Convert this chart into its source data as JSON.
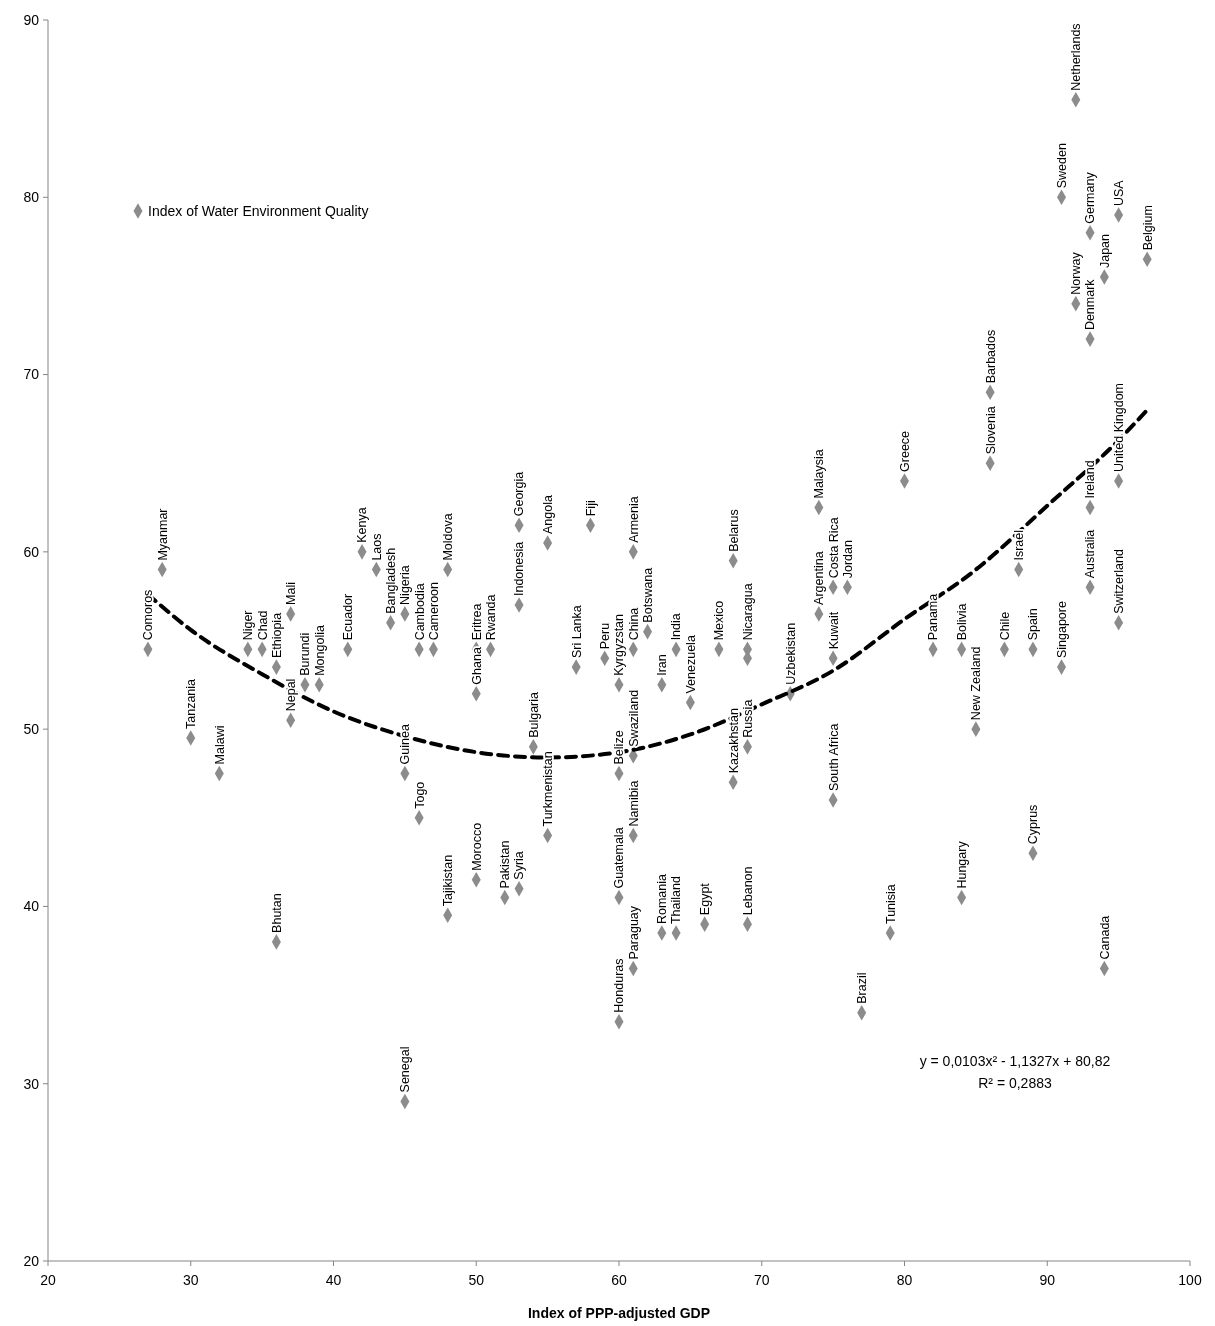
{
  "chart_data": {
    "type": "scatter",
    "xlabel": "Index of PPP-adjusted GDP",
    "xlim": [
      20,
      100
    ],
    "xticks": [
      20,
      30,
      40,
      50,
      60,
      70,
      80,
      90,
      100
    ],
    "ylim": [
      20,
      90
    ],
    "yticks": [
      20,
      30,
      40,
      50,
      60,
      70,
      80,
      90
    ],
    "legend": "top left",
    "series": [
      {
        "name": "Index of Water Environment Quality",
        "marker": "diamond",
        "color": "#8c8c8c",
        "x": [
          27,
          28,
          30,
          32,
          34,
          35,
          36,
          36,
          37,
          37,
          38,
          39,
          41,
          42,
          43,
          44,
          45,
          45,
          45,
          46,
          46,
          47,
          48,
          48,
          50,
          50,
          50,
          51,
          52,
          53,
          53,
          53,
          54,
          55,
          55,
          57,
          58,
          59,
          60,
          60,
          60,
          60,
          61,
          61,
          61,
          61,
          61,
          62,
          63,
          63,
          64,
          64,
          65,
          66,
          67,
          68,
          68,
          69,
          69,
          69,
          69,
          72,
          74,
          74,
          75,
          75,
          75,
          76,
          77,
          79,
          80,
          82,
          84,
          84,
          85,
          86,
          86,
          87,
          88,
          89,
          89,
          91,
          91,
          92,
          92,
          93,
          93,
          93,
          93,
          94,
          94,
          95,
          95,
          95,
          97
        ],
        "values": [
          54.5,
          59,
          49.5,
          47.5,
          54.5,
          54.5,
          53.5,
          38,
          56.5,
          50.5,
          52.5,
          52.5,
          54.5,
          60,
          59,
          56,
          56.5,
          47.5,
          29,
          54.5,
          45,
          54.5,
          59,
          39.5,
          52,
          54.5,
          41.5,
          54.5,
          40.5,
          57,
          61.5,
          41,
          49,
          60.5,
          44,
          53.5,
          61.5,
          54,
          52.5,
          47.5,
          40.5,
          33.5,
          54.5,
          60,
          48.5,
          44,
          36.5,
          55.5,
          52.5,
          38.5,
          54.5,
          38.5,
          51.5,
          39,
          54.5,
          59.5,
          47,
          54.5,
          54,
          49,
          39,
          52,
          62.5,
          56.5,
          54,
          46,
          58,
          58,
          34,
          38.5,
          64,
          54.5,
          54.5,
          40.5,
          50,
          65,
          69,
          54.5,
          59,
          54.5,
          43,
          80,
          53.5,
          85.5,
          74,
          78,
          72,
          62.5,
          58,
          75.5,
          36.5,
          79,
          56,
          64,
          76.5
        ]
      },
      {
        "type": "line",
        "marker": "none",
        "line_style": "dashed",
        "color": "#000000",
        "x": [
          27,
          30,
          35,
          40,
          45,
          50,
          55,
          60,
          65,
          70,
          75,
          80,
          85,
          90,
          95,
          97
        ],
        "values": [
          57.6,
          55.6,
          53.1,
          51,
          49.6,
          48.7,
          48.4,
          48.7,
          49.7,
          51.4,
          53.3,
          56.2,
          59,
          62.6,
          66.3,
          68
        ]
      }
    ],
    "annotations": [
      {
        "text": "Comoros",
        "x": 27,
        "y": 54.5
      },
      {
        "text": "Myanmar",
        "x": 28,
        "y": 59
      },
      {
        "text": "Tanzania",
        "x": 30,
        "y": 49.5
      },
      {
        "text": "Malawi",
        "x": 32,
        "y": 47.5
      },
      {
        "text": "Niger",
        "x": 34,
        "y": 54.5
      },
      {
        "text": "Chad",
        "x": 35,
        "y": 54.5
      },
      {
        "text": "Ethiopia",
        "x": 36,
        "y": 53.5
      },
      {
        "text": "Bhutan",
        "x": 36,
        "y": 38
      },
      {
        "text": "Mali",
        "x": 37,
        "y": 56.5
      },
      {
        "text": "Nepal",
        "x": 37,
        "y": 50.5
      },
      {
        "text": "Burundi",
        "x": 38,
        "y": 52.5
      },
      {
        "text": "Mongolia",
        "x": 39,
        "y": 52.5
      },
      {
        "text": "Ecuador",
        "x": 41,
        "y": 54.5
      },
      {
        "text": "Kenya",
        "x": 42,
        "y": 60
      },
      {
        "text": "Laos",
        "x": 43,
        "y": 59
      },
      {
        "text": "Bangladesh",
        "x": 44,
        "y": 56
      },
      {
        "text": "Nigeria",
        "x": 45,
        "y": 56.5
      },
      {
        "text": "Guinea",
        "x": 45,
        "y": 47.5
      },
      {
        "text": "Senegal",
        "x": 45,
        "y": 29
      },
      {
        "text": "Cambodia",
        "x": 46,
        "y": 54.5
      },
      {
        "text": "Togo",
        "x": 46,
        "y": 45
      },
      {
        "text": "Cameroon",
        "x": 47,
        "y": 54.5
      },
      {
        "text": "Moldova",
        "x": 48,
        "y": 59
      },
      {
        "text": "Tajikistan",
        "x": 48,
        "y": 39.5
      },
      {
        "text": "Ghana",
        "x": 50,
        "y": 52
      },
      {
        "text": "Eritrea",
        "x": 50,
        "y": 54.5
      },
      {
        "text": "Morocco",
        "x": 50,
        "y": 41.5
      },
      {
        "text": "Rwanda",
        "x": 51,
        "y": 54.5
      },
      {
        "text": "Pakistan",
        "x": 52,
        "y": 40.5
      },
      {
        "text": "Indonesia",
        "x": 53,
        "y": 57
      },
      {
        "text": "Georgia",
        "x": 53,
        "y": 61.5
      },
      {
        "text": "Syria",
        "x": 53,
        "y": 41
      },
      {
        "text": "Bulgaria",
        "x": 54,
        "y": 49
      },
      {
        "text": "Angola",
        "x": 55,
        "y": 60.5
      },
      {
        "text": "Turkmenistan",
        "x": 55,
        "y": 44
      },
      {
        "text": "Sri Lanka",
        "x": 57,
        "y": 53.5
      },
      {
        "text": "Fiji",
        "x": 58,
        "y": 61.5
      },
      {
        "text": "Peru",
        "x": 59,
        "y": 54
      },
      {
        "text": "Kyrgyzstan",
        "x": 60,
        "y": 52.5
      },
      {
        "text": "Belize",
        "x": 60,
        "y": 47.5
      },
      {
        "text": "Guatemala",
        "x": 60,
        "y": 40.5
      },
      {
        "text": "Honduras",
        "x": 60,
        "y": 33.5
      },
      {
        "text": "China",
        "x": 61,
        "y": 54.5
      },
      {
        "text": "Armenia",
        "x": 61,
        "y": 60
      },
      {
        "text": "Swaziland",
        "x": 61,
        "y": 48.5
      },
      {
        "text": "Namibia",
        "x": 61,
        "y": 44
      },
      {
        "text": "Paraguay",
        "x": 61,
        "y": 36.5
      },
      {
        "text": "Botswana",
        "x": 62,
        "y": 55.5
      },
      {
        "text": "Iran",
        "x": 63,
        "y": 52.5
      },
      {
        "text": "Romania",
        "x": 63,
        "y": 38.5
      },
      {
        "text": "India",
        "x": 64,
        "y": 54.5
      },
      {
        "text": "Thailand",
        "x": 64,
        "y": 38.5
      },
      {
        "text": "Venezuela",
        "x": 65,
        "y": 51.5
      },
      {
        "text": "Egypt",
        "x": 66,
        "y": 39
      },
      {
        "text": "Mexico",
        "x": 67,
        "y": 54.5
      },
      {
        "text": "Belarus",
        "x": 68,
        "y": 59.5
      },
      {
        "text": "Kazakhstan",
        "x": 68,
        "y": 47
      },
      {
        "text": "Nicaragua",
        "x": 69,
        "y": 54.5
      },
      {
        "text": "Russia",
        "x": 69,
        "y": 49
      },
      {
        "text": "Lebanon",
        "x": 69,
        "y": 39
      },
      {
        "text": "Uzbekistan",
        "x": 72,
        "y": 52
      },
      {
        "text": "Malaysia",
        "x": 74,
        "y": 62.5
      },
      {
        "text": "Argentina",
        "x": 74,
        "y": 56.5
      },
      {
        "text": "Kuwait",
        "x": 75,
        "y": 54
      },
      {
        "text": "South Africa",
        "x": 75,
        "y": 46
      },
      {
        "text": "Costa Rica",
        "x": 75,
        "y": 58
      },
      {
        "text": "Jordan",
        "x": 76,
        "y": 58
      },
      {
        "text": "Brazil",
        "x": 77,
        "y": 34
      },
      {
        "text": "Tunisia",
        "x": 79,
        "y": 38.5
      },
      {
        "text": "Greece",
        "x": 80,
        "y": 64
      },
      {
        "text": "Panama",
        "x": 82,
        "y": 54.5
      },
      {
        "text": "Bolivia",
        "x": 84,
        "y": 54.5
      },
      {
        "text": "Hungary",
        "x": 84,
        "y": 40.5
      },
      {
        "text": "New Zealand",
        "x": 85,
        "y": 50
      },
      {
        "text": "Slovenia",
        "x": 86,
        "y": 65
      },
      {
        "text": "Barbados",
        "x": 86,
        "y": 69
      },
      {
        "text": "Chile",
        "x": 87,
        "y": 54.5
      },
      {
        "text": "Israel",
        "x": 88,
        "y": 59
      },
      {
        "text": "Spain",
        "x": 89,
        "y": 54.5
      },
      {
        "text": "Cyprus",
        "x": 89,
        "y": 43
      },
      {
        "text": "Sweden",
        "x": 91,
        "y": 80
      },
      {
        "text": "Singapore",
        "x": 91,
        "y": 53.5
      },
      {
        "text": "Netherlands",
        "x": 92,
        "y": 85.5
      },
      {
        "text": "Norway",
        "x": 92,
        "y": 74
      },
      {
        "text": "Germany",
        "x": 93,
        "y": 78
      },
      {
        "text": "Denmark",
        "x": 93,
        "y": 72
      },
      {
        "text": "Ireland",
        "x": 93,
        "y": 62.5
      },
      {
        "text": "Australia",
        "x": 93,
        "y": 58
      },
      {
        "text": "Japan",
        "x": 94,
        "y": 75.5
      },
      {
        "text": "Canada",
        "x": 94,
        "y": 36.5
      },
      {
        "text": "USA",
        "x": 95,
        "y": 79
      },
      {
        "text": "Switzerland",
        "x": 95,
        "y": 56
      },
      {
        "text": "United Kingdom",
        "x": 95,
        "y": 64
      },
      {
        "text": "Belgium",
        "x": 97,
        "y": 76.5
      },
      "y = 0,0103x² - 1,1327x + 80,82",
      "R² = 0,2883"
    ]
  }
}
